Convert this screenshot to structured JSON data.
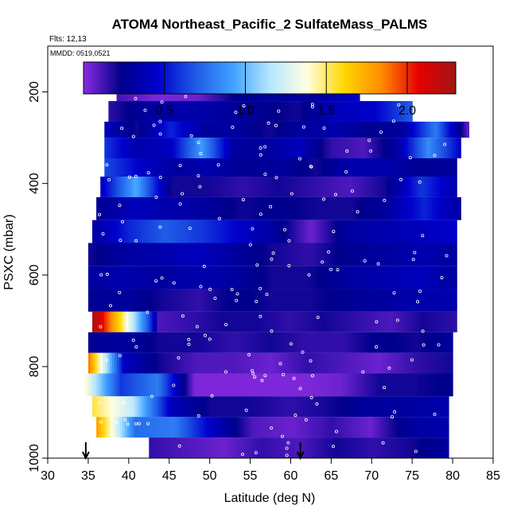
{
  "chart_data": {
    "type": "heatmap",
    "title": "ATOM4 Northeast_Pacific_2 SulfateMass_PALMS",
    "flights_label": "Flts: 12,13",
    "dates_label": "MMDD: 0519,0521",
    "xlabel": "Latitude (deg N)",
    "ylabel": "PSXC (mbar)",
    "xlim": [
      30,
      85
    ],
    "ylim": [
      1000,
      100
    ],
    "x_ticks": [
      "30",
      "35",
      "40",
      "45",
      "50",
      "55",
      "60",
      "65",
      "70",
      "75",
      "80",
      "85"
    ],
    "y_ticks": [
      "200",
      "400",
      "600",
      "800",
      "1000"
    ],
    "colorbar": {
      "range": [
        0,
        2.3
      ],
      "ticks": [
        "0.5",
        "1.0",
        "1.5",
        "2.0"
      ],
      "colors": [
        "#8a2be2",
        "#00008b",
        "#0000cd",
        "#1e5ae6",
        "#40a0ff",
        "#b4e6ff",
        "#ffffe0",
        "#ffd700",
        "#ff8c00",
        "#e60000",
        "#a01414"
      ]
    },
    "arrows_at_latitude": [
      34.7,
      61.2
    ],
    "bands": [
      {
        "p_top": 175,
        "p_bot": 220,
        "lat_start": 38.5,
        "lat_end": 68.5,
        "values": [
          0.12,
          0.02,
          0.05,
          0.25,
          0.3,
          0.3,
          0.45
        ]
      },
      {
        "p_top": 220,
        "p_bot": 265,
        "lat_start": 37.5,
        "lat_end": 75,
        "values": [
          0.15,
          0.3,
          0.35,
          0.3,
          0.25,
          0.2,
          0.4,
          0.45,
          0.7
        ]
      },
      {
        "p_top": 265,
        "p_bot": 300,
        "lat_start": 37,
        "lat_end": 82,
        "values": [
          0.4,
          0.2,
          0.55,
          0.3,
          0.3,
          0.2,
          0.3,
          0.35,
          0.25,
          0.3,
          0.8,
          0.05
        ]
      },
      {
        "p_top": 300,
        "p_bot": 345,
        "lat_start": 37,
        "lat_end": 81,
        "values": [
          0.6,
          0.35,
          0.4,
          0.9,
          0.3,
          0.3,
          0.4,
          0.15,
          0.1,
          0.3,
          0.85,
          0.45
        ]
      },
      {
        "p_top": 345,
        "p_bot": 385,
        "lat_start": 37,
        "lat_end": 80.5,
        "values": [
          0.65,
          0.45,
          0.3,
          0.35,
          0.25,
          0.3,
          0.2,
          0.35,
          0.35,
          0.25,
          0.3
        ]
      },
      {
        "p_top": 385,
        "p_bot": 430,
        "lat_start": 36.5,
        "lat_end": 80.5,
        "values": [
          0.4,
          0.95,
          0.2,
          0.2,
          0.15,
          0.2,
          0.15,
          0.1,
          0.2,
          0.6,
          0.35
        ]
      },
      {
        "p_top": 430,
        "p_bot": 480,
        "lat_start": 36,
        "lat_end": 81,
        "values": [
          0.25,
          0.4,
          0.35,
          0.3,
          0.2,
          0.25,
          0.2,
          0.2,
          0.3,
          0.55,
          0.3
        ]
      },
      {
        "p_top": 480,
        "p_bot": 530,
        "lat_start": 35.5,
        "lat_end": 80.5,
        "values": [
          0.3,
          0.55,
          0.7,
          0.6,
          0.45,
          0.3,
          0.05,
          0.3,
          0.35,
          0.4,
          0.45
        ]
      },
      {
        "p_top": 530,
        "p_bot": 580,
        "lat_start": 35,
        "lat_end": 80.5,
        "values": [
          0.2,
          0.3,
          0.35,
          0.4,
          0.3,
          0.2,
          0.15,
          0.25,
          0.3,
          0.35,
          0.3
        ]
      },
      {
        "p_top": 580,
        "p_bot": 630,
        "lat_start": 35,
        "lat_end": 80.5,
        "values": [
          0.3,
          0.35,
          0.3,
          0.35,
          0.3,
          0.2,
          0.2,
          0.3,
          0.35,
          0.4,
          0.3
        ]
      },
      {
        "p_top": 630,
        "p_bot": 680,
        "lat_start": 35,
        "lat_end": 80.5,
        "values": [
          0.25,
          0.3,
          0.2,
          0.15,
          0.25,
          0.2,
          0.2,
          0.25,
          0.3,
          0.35,
          0.35
        ]
      },
      {
        "p_top": 680,
        "p_bot": 725,
        "lat_start": 35.5,
        "lat_end": 43.5,
        "values": [
          2.25,
          2.1,
          1.85,
          1.6,
          1.3,
          1.0,
          0.7,
          0.3
        ]
      },
      {
        "p_top": 680,
        "p_bot": 725,
        "lat_start": 43.5,
        "lat_end": 80.5,
        "values": [
          0.1,
          0.15,
          0.2,
          0.2,
          0.15,
          0.2,
          0.15,
          0.1,
          0.2,
          0.15
        ]
      },
      {
        "p_top": 725,
        "p_bot": 770,
        "lat_start": 35,
        "lat_end": 80,
        "values": [
          0.25,
          0.3,
          0.2,
          0.2,
          0.15,
          0.2,
          0.15,
          0.15,
          0.25,
          0.2,
          0.3
        ]
      },
      {
        "p_top": 770,
        "p_bot": 815,
        "lat_start": 35,
        "lat_end": 80,
        "values": [
          1.9,
          0.4,
          0.2,
          0.1,
          0.1,
          0.05,
          0.15,
          0.1,
          0.05,
          0.15,
          0.2
        ]
      },
      {
        "p_top": 815,
        "p_bot": 865,
        "lat_start": 34.5,
        "lat_end": 80,
        "values": [
          1.4,
          0.6,
          0.8,
          0.02,
          0.02,
          0.02,
          0.02,
          0.05,
          0.2,
          0.2,
          0.25
        ]
      },
      {
        "p_top": 865,
        "p_bot": 910,
        "lat_start": 35.5,
        "lat_end": 79.5,
        "values": [
          1.55,
          1.2,
          0.4,
          0.2,
          0.2,
          0.15,
          0.2,
          0.3,
          0.3,
          0.35
        ]
      },
      {
        "p_top": 910,
        "p_bot": 955,
        "lat_start": 36,
        "lat_end": 79.5,
        "values": [
          1.8,
          0.75,
          0.8,
          0.4,
          0.1,
          0.05,
          0.15,
          0.05,
          0.3,
          0.35
        ]
      },
      {
        "p_top": 955,
        "p_bot": 1000,
        "lat_start": 42.5,
        "lat_end": 79.5,
        "values": [
          0.15,
          0.1,
          0.05,
          0.15,
          0.1,
          0.2,
          0.15,
          0.2,
          0.3
        ]
      }
    ]
  }
}
